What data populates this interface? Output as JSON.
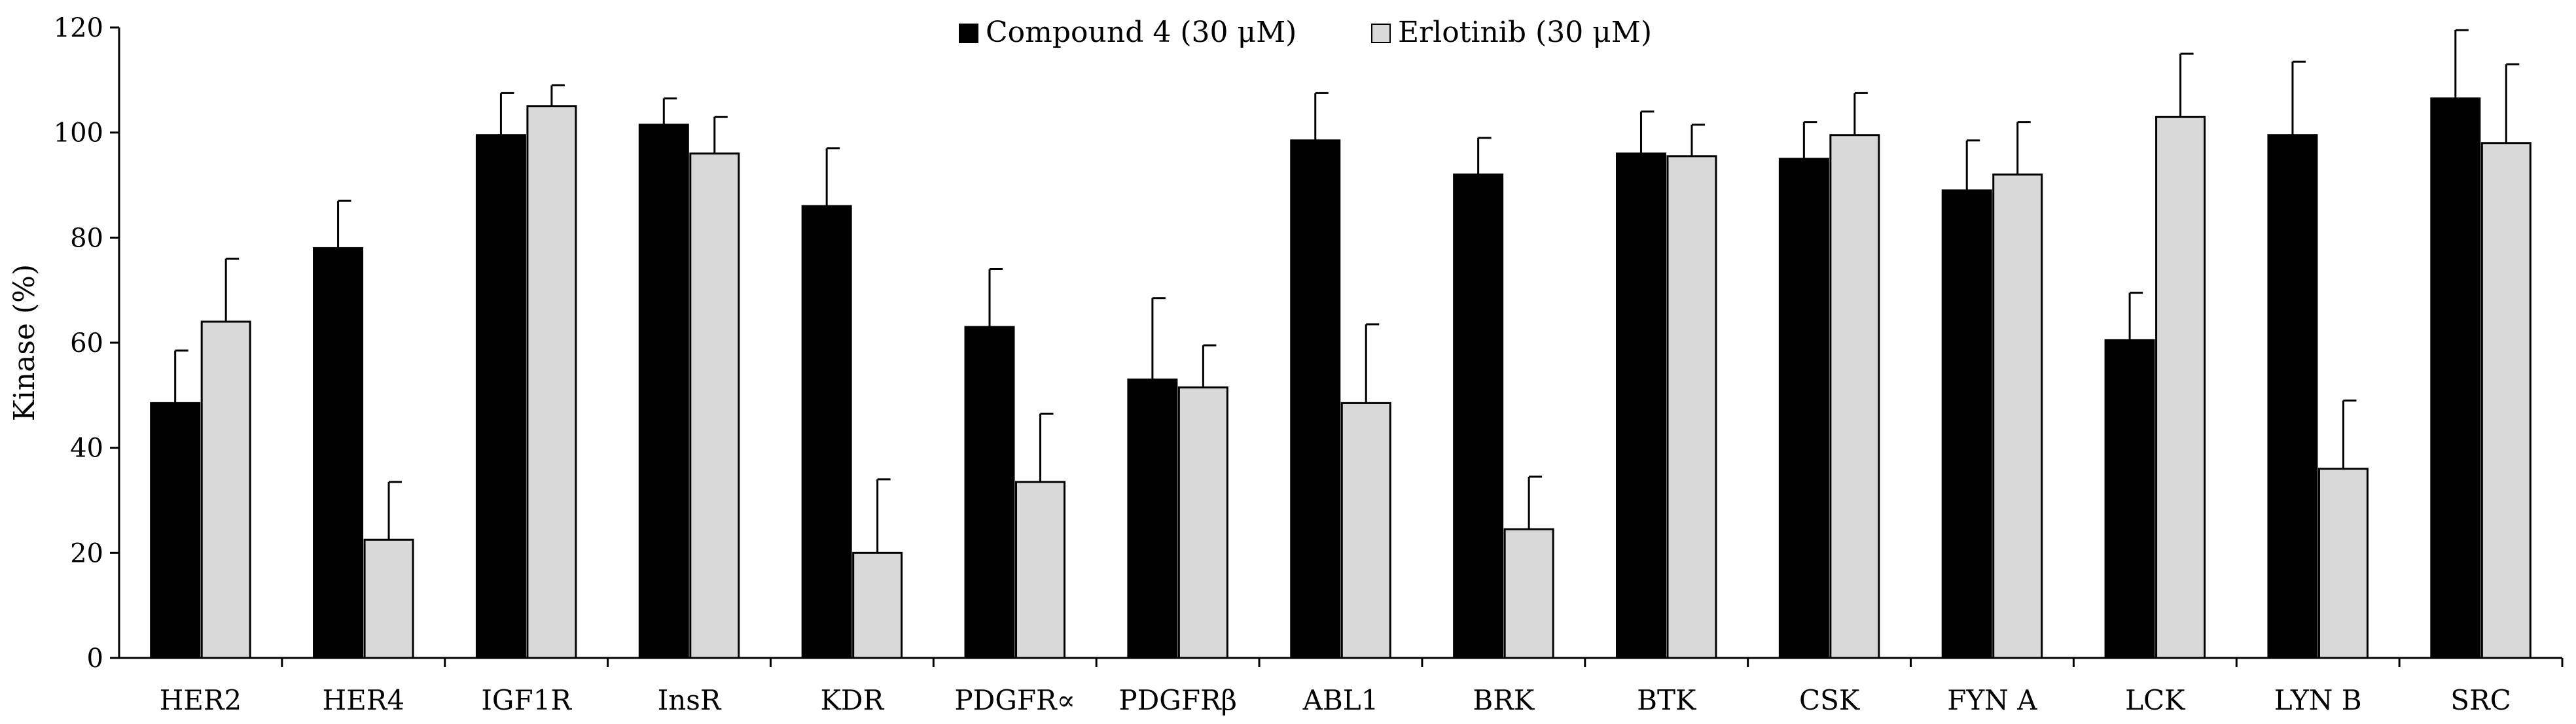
{
  "chart_data": {
    "type": "bar",
    "title": "",
    "xlabel": "",
    "ylabel": "Kinase (%)",
    "ylim": [
      0,
      120
    ],
    "yticks": [
      0,
      20,
      40,
      60,
      80,
      100,
      120
    ],
    "grid": false,
    "legend_position": "top-center",
    "categories": [
      "HER2",
      "HER4",
      "IGF1R",
      "InsR",
      "KDR",
      "PDGFR∝",
      "PDGFRβ",
      "ABL1",
      "BRK",
      "BTK",
      "CSK",
      "FYN A",
      "LCK",
      "LYN B",
      "SRC"
    ],
    "series": [
      {
        "name": "Compound 4 (30 μM)",
        "color": "#000000",
        "values": [
          48.5,
          78,
          99.5,
          101.5,
          86,
          63,
          53,
          98.5,
          92,
          96,
          95,
          89,
          60.5,
          99.5,
          106.5
        ],
        "errors": [
          10,
          9,
          8,
          5,
          11,
          11,
          15.5,
          9,
          7,
          8,
          7,
          9.5,
          9,
          14,
          13
        ]
      },
      {
        "name": "Erlotinib (30 μM)",
        "color": "#d9d9d9",
        "values": [
          64,
          22.5,
          105,
          96,
          20,
          33.5,
          51.5,
          48.5,
          24.5,
          95.5,
          99.5,
          92,
          103,
          36,
          98
        ],
        "errors": [
          12,
          11,
          4,
          7,
          14,
          13,
          8,
          15,
          10,
          6,
          8,
          10,
          12,
          13,
          15
        ]
      }
    ]
  }
}
